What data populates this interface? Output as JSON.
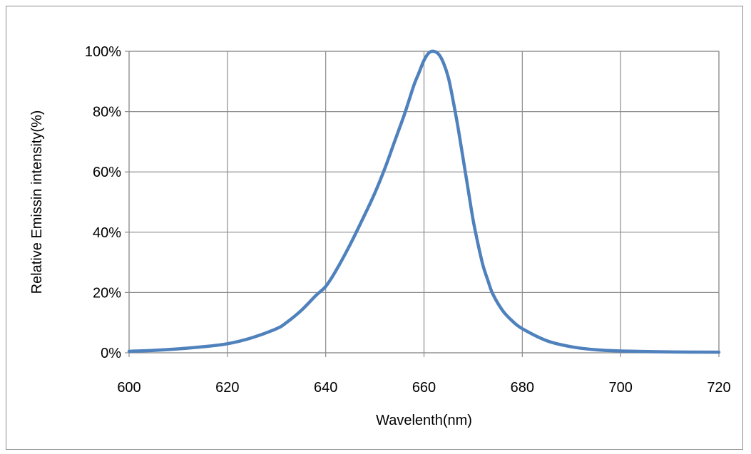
{
  "chart_data": {
    "type": "line",
    "title": "",
    "xlabel": "Wavelenth(nm)",
    "ylabel": "Relative Emissin intensity(%)",
    "xlim": [
      600,
      720
    ],
    "ylim": [
      0,
      100
    ],
    "x_ticks": [
      600,
      620,
      640,
      660,
      680,
      700,
      720
    ],
    "y_ticks": [
      0,
      20,
      40,
      60,
      80,
      100
    ],
    "x_tick_labels": [
      "600",
      "620",
      "640",
      "660",
      "680",
      "700",
      "720"
    ],
    "y_tick_labels": [
      "0%",
      "20%",
      "40%",
      "60%",
      "80%",
      "100%"
    ],
    "grid": true,
    "legend": "none",
    "line_color": "#4f81bd",
    "series": [
      {
        "x": [
          600,
          605,
          610,
          615,
          620,
          625,
          630,
          632,
          635,
          638,
          640,
          642,
          645,
          648,
          650,
          652,
          654,
          656,
          657,
          658,
          659,
          660,
          661,
          662,
          663,
          664,
          665,
          666,
          667,
          668,
          669,
          670,
          671,
          672,
          673,
          674,
          676,
          678,
          680,
          685,
          690,
          695,
          700,
          710,
          720
        ],
        "y": [
          0.5,
          0.8,
          1.3,
          2.0,
          3.0,
          5.0,
          8.0,
          10.0,
          14.0,
          19.0,
          22.0,
          27.0,
          36.0,
          46.0,
          53.0,
          61.0,
          70.0,
          79.0,
          84.0,
          89.0,
          93.0,
          97.0,
          99.5,
          100.0,
          99.0,
          96.0,
          91.0,
          83.0,
          74.0,
          64.0,
          54.0,
          44.0,
          36.0,
          29.0,
          24.0,
          19.5,
          14.0,
          10.5,
          8.0,
          4.0,
          2.0,
          1.0,
          0.6,
          0.3,
          0.2
        ]
      }
    ]
  }
}
